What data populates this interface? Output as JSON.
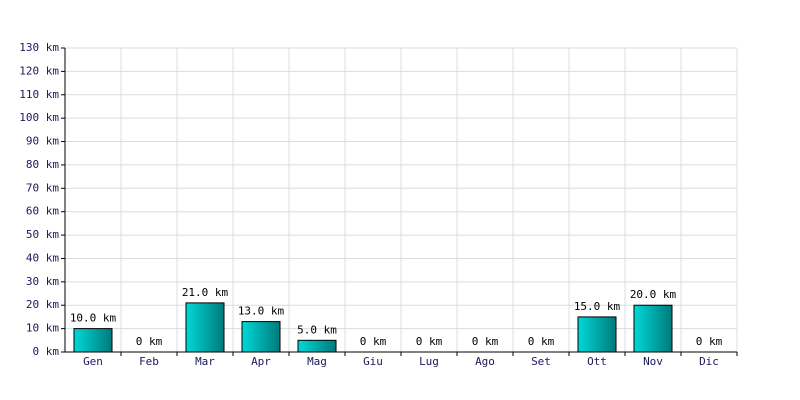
{
  "chart_data": {
    "type": "bar",
    "categories": [
      "Gen",
      "Feb",
      "Mar",
      "Apr",
      "Mag",
      "Giu",
      "Lug",
      "Ago",
      "Set",
      "Ott",
      "Nov",
      "Dic"
    ],
    "values": [
      10,
      0,
      21,
      13,
      5,
      0,
      0,
      0,
      0,
      15,
      20,
      0
    ],
    "value_labels": [
      "10.0 km",
      "0 km",
      "21.0 km",
      "13.0 km",
      "5.0 km",
      "0 km",
      "0 km",
      "0 km",
      "0 km",
      "15.0 km",
      "20.0 km",
      "0 km"
    ],
    "color": "#00d8d8",
    "ylim": [
      0,
      130
    ],
    "yticks": [
      {
        "value": 0,
        "label": "0 km"
      },
      {
        "value": 10,
        "label": "10 km"
      },
      {
        "value": 20,
        "label": "20 km"
      },
      {
        "value": 30,
        "label": "30 km"
      },
      {
        "value": 40,
        "label": "40 km"
      },
      {
        "value": 50,
        "label": "50 km"
      },
      {
        "value": 60,
        "label": "60 km"
      },
      {
        "value": 70,
        "label": "70 km"
      },
      {
        "value": 80,
        "label": "80 km"
      },
      {
        "value": 90,
        "label": "90 km"
      },
      {
        "value": 100,
        "label": "100 km"
      },
      {
        "value": 110,
        "label": "110 km"
      },
      {
        "value": 120,
        "label": "120 km"
      },
      {
        "value": 130,
        "label": "130 km"
      }
    ],
    "grid": true
  }
}
